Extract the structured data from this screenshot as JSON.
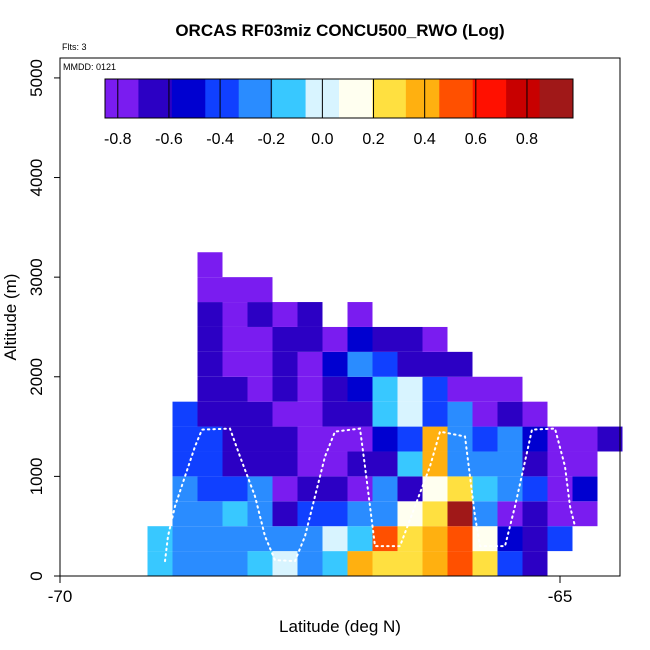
{
  "chart_data": {
    "type": "heatmap",
    "title": "ORCAS RF03miz CONCU500_RWO (Log)",
    "flts_label": "Flts: 3",
    "date_label": "MMDD: 0121",
    "xlabel": "Latitude (deg N)",
    "ylabel": "Altitude (m)",
    "xlim": [
      -70,
      -64.4
    ],
    "ylim": [
      0,
      5200
    ],
    "xticks": [
      -70,
      -65
    ],
    "xtick_labels": [
      "-70",
      "-65"
    ],
    "yticks": [
      0,
      1000,
      2000,
      3000,
      4000,
      5000
    ],
    "ytick_labels": [
      "0",
      "1000",
      "2000",
      "3000",
      "4000",
      "5000"
    ],
    "grid": false,
    "colorbar": {
      "placement": "top-inside",
      "range": [
        -0.85,
        0.98
      ],
      "ticks": [
        -0.8,
        -0.6,
        -0.4,
        -0.2,
        0.0,
        0.2,
        0.4,
        0.6,
        0.8
      ],
      "tick_labels": [
        "-0.8",
        "-0.6",
        "-0.4",
        "-0.2",
        "0.0",
        "0.2",
        "0.4",
        "0.6",
        "0.8"
      ],
      "colors": [
        "#7a1cf0",
        "#2c00c4",
        "#0000d0",
        "#1040ff",
        "#2a8cff",
        "#38c8ff",
        "#d8f4ff",
        "#fffff0",
        "#ffe040",
        "#ffb010",
        "#ff5000",
        "#ff1000",
        "#c80000",
        "#a01818"
      ]
    },
    "cell_size": {
      "dlat": 0.25,
      "dalt": 250
    },
    "columns": [
      {
        "lat": -69.0,
        "values": {
          "0": -0.15,
          "250": -0.15
        }
      },
      {
        "lat": -68.75,
        "values": {
          "0": -0.3,
          "250": -0.2,
          "500": -0.3,
          "750": -0.3,
          "1000": -0.4,
          "1250": -0.4,
          "1500": -0.45
        }
      },
      {
        "lat": -68.5,
        "values": {
          "0": -0.3,
          "250": -0.3,
          "500": -0.25,
          "750": -0.45,
          "1000": -0.4,
          "1250": -0.45,
          "1500": -0.6,
          "1750": -0.65,
          "2000": -0.65,
          "2250": -0.7,
          "2500": -0.7,
          "2750": -0.75,
          "3000": -0.8
        }
      },
      {
        "lat": -68.25,
        "values": {
          "0": -0.2,
          "250": -0.3,
          "500": -0.1,
          "750": -0.4,
          "1000": -0.6,
          "1250": -0.65,
          "1500": -0.68,
          "1750": -0.7,
          "2000": -0.72,
          "2250": -0.78,
          "2500": -0.8,
          "2750": -0.85
        }
      },
      {
        "lat": -68.0,
        "values": {
          "0": -0.15,
          "250": -0.3,
          "500": -0.3,
          "750": -0.3,
          "1000": -0.6,
          "1250": -0.7,
          "1500": -0.7,
          "1750": -0.75,
          "2000": -0.8,
          "2250": -0.8,
          "2500": -0.6,
          "2750": -0.78
        }
      },
      {
        "lat": -67.75,
        "values": {
          "0": -0.05,
          "250": -0.3,
          "500": -0.7,
          "750": -0.72,
          "1000": -0.7,
          "1250": -0.6,
          "1500": -0.8,
          "1750": -0.6,
          "2000": -0.7,
          "2250": -0.65,
          "2500": -0.8
        }
      },
      {
        "lat": -67.5,
        "values": {
          "0": -0.2,
          "250": -0.25,
          "500": -0.45,
          "750": -0.7,
          "1000": -0.8,
          "1250": -0.8,
          "1500": -0.78,
          "1750": -0.75,
          "2000": -0.72,
          "2250": -0.7,
          "2500": -0.7
        }
      },
      {
        "lat": -67.25,
        "values": {
          "0": -0.1,
          "250": -0.05,
          "500": -0.4,
          "750": -0.6,
          "1000": -0.75,
          "1250": -0.78,
          "1500": -0.6,
          "1750": -0.68,
          "2000": -0.5,
          "2250": -0.75
        }
      },
      {
        "lat": -67.0,
        "values": {
          "0": 0.35,
          "250": -0.1,
          "500": -0.3,
          "750": -0.78,
          "1000": -0.7,
          "1250": -0.75,
          "1500": -0.65,
          "1750": -0.5,
          "2000": -0.2,
          "2250": -0.5,
          "2500": -0.8
        }
      },
      {
        "lat": -66.75,
        "values": {
          "0": 0.25,
          "250": 0.5,
          "500": -0.2,
          "750": -0.2,
          "1000": -0.7,
          "1250": -0.5,
          "1500": -0.15,
          "1750": -0.15,
          "2000": -0.35,
          "2250": -0.7
        }
      },
      {
        "lat": -66.5,
        "values": {
          "0": 0.3,
          "250": 0.2,
          "500": 0.1,
          "750": -0.7,
          "1000": -0.1,
          "1250": -0.4,
          "1500": 0.05,
          "1750": 0.0,
          "2000": -0.65,
          "2250": -0.65
        }
      },
      {
        "lat": -66.25,
        "values": {
          "0": 0.4,
          "250": 0.4,
          "500": 0.2,
          "750": 0.08,
          "1000": 0.45,
          "1250": 0.35,
          "1500": -0.35,
          "1750": -0.35,
          "2000": -0.6,
          "2250": -0.8
        }
      },
      {
        "lat": -66.0,
        "values": {
          "0": 0.5,
          "250": 0.5,
          "500": 0.95,
          "750": 0.3,
          "1000": -0.2,
          "1250": -0.2,
          "1500": -0.25,
          "1750": -0.8,
          "2000": -0.7
        }
      },
      {
        "lat": -65.75,
        "values": {
          "0": 0.3,
          "250": 0.15,
          "500": -0.3,
          "750": -0.15,
          "1000": -0.25,
          "1250": -0.4,
          "1500": -0.75,
          "1750": -0.8
        }
      },
      {
        "lat": -65.5,
        "values": {
          "0": -0.4,
          "250": -0.5,
          "500": -0.75,
          "750": -0.25,
          "1000": -0.2,
          "1250": -0.3,
          "1500": -0.65,
          "1750": -0.75
        }
      },
      {
        "lat": -65.25,
        "values": {
          "0": -0.65,
          "250": -0.7,
          "500": -0.6,
          "750": -0.4,
          "1000": -0.7,
          "1250": -0.55,
          "1500": -0.75
        }
      },
      {
        "lat": -65.0,
        "values": {
          "250": -0.45,
          "500": -0.8,
          "750": -0.85,
          "1000": -0.75,
          "1250": -0.8
        }
      },
      {
        "lat": -64.75,
        "values": {
          "500": -0.8,
          "750": -0.5,
          "1000": -0.85,
          "1250": -0.85
        }
      },
      {
        "lat": -64.5,
        "values": {
          "1250": -0.7
        }
      }
    ],
    "flight_track": [
      {
        "lat": -68.95,
        "alt": 150
      },
      {
        "lat": -68.92,
        "alt": 400
      },
      {
        "lat": -68.85,
        "alt": 700
      },
      {
        "lat": -68.75,
        "alt": 1000
      },
      {
        "lat": -68.65,
        "alt": 1300
      },
      {
        "lat": -68.58,
        "alt": 1470
      },
      {
        "lat": -68.3,
        "alt": 1480
      },
      {
        "lat": -68.2,
        "alt": 1200
      },
      {
        "lat": -68.05,
        "alt": 800
      },
      {
        "lat": -67.95,
        "alt": 400
      },
      {
        "lat": -67.85,
        "alt": 160
      },
      {
        "lat": -67.65,
        "alt": 150
      },
      {
        "lat": -67.55,
        "alt": 400
      },
      {
        "lat": -67.45,
        "alt": 800
      },
      {
        "lat": -67.35,
        "alt": 1200
      },
      {
        "lat": -67.25,
        "alt": 1450
      },
      {
        "lat": -67.0,
        "alt": 1480
      },
      {
        "lat": -66.95,
        "alt": 1100
      },
      {
        "lat": -66.9,
        "alt": 700
      },
      {
        "lat": -66.85,
        "alt": 300
      },
      {
        "lat": -66.6,
        "alt": 300
      },
      {
        "lat": -66.45,
        "alt": 700
      },
      {
        "lat": -66.3,
        "alt": 1100
      },
      {
        "lat": -66.2,
        "alt": 1450
      },
      {
        "lat": -65.95,
        "alt": 1400
      },
      {
        "lat": -65.9,
        "alt": 1000
      },
      {
        "lat": -65.85,
        "alt": 600
      },
      {
        "lat": -65.8,
        "alt": 300
      },
      {
        "lat": -65.55,
        "alt": 300
      },
      {
        "lat": -65.45,
        "alt": 700
      },
      {
        "lat": -65.35,
        "alt": 1150
      },
      {
        "lat": -65.28,
        "alt": 1470
      },
      {
        "lat": -65.05,
        "alt": 1480
      },
      {
        "lat": -64.95,
        "alt": 1100
      },
      {
        "lat": -64.9,
        "alt": 700
      },
      {
        "lat": -64.82,
        "alt": 380
      },
      {
        "lat": -64.7,
        "alt": 200
      },
      {
        "lat": -64.55,
        "alt": 350
      }
    ]
  }
}
